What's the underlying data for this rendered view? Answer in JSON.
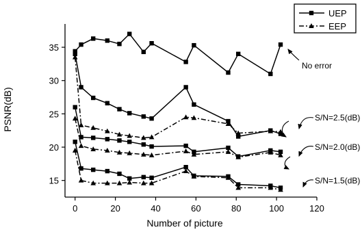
{
  "chart_data": {
    "type": "line",
    "title": "",
    "xlabel": "Number of picture",
    "ylabel": "PSNR(dB)",
    "xlim": [
      -5,
      120
    ],
    "ylim": [
      12.5,
      38.5
    ],
    "xticks": [
      0,
      20,
      40,
      60,
      80,
      100,
      120
    ],
    "yticks": [
      15,
      20,
      25,
      30,
      35
    ],
    "grid": false,
    "legend_position": "top-right",
    "legend": [
      {
        "label": "UEP",
        "marker": "square",
        "dash": "solid"
      },
      {
        "label": "EEP",
        "marker": "triangle",
        "dash": "dash-dot"
      }
    ],
    "annotations": [
      {
        "text": "No error",
        "x": 99,
        "y": 31.2
      },
      {
        "text": "S/N=2.5(dB)",
        "x": 99,
        "y": 22.4
      },
      {
        "text": "S/N=2.0(dB)",
        "x": 101,
        "y": 19.3
      },
      {
        "text": "S/N=1.5(dB)",
        "x": 101,
        "y": 14.1
      }
    ],
    "series": [
      {
        "name": "",
        "marker": "square",
        "dash": "solid",
        "x": [
          0,
          3,
          9,
          16,
          22,
          27,
          34,
          38,
          55,
          59,
          76,
          81,
          97,
          102
        ],
        "y": [
          34.4,
          35.4,
          36.3,
          36.0,
          35.5,
          37.0,
          34.3,
          35.6,
          32.8,
          35.3,
          31.2,
          34.0,
          31.0,
          35.4
        ]
      },
      {
        "name": "",
        "marker": "square",
        "dash": "solid",
        "x": [
          0,
          3,
          9,
          16,
          22,
          27,
          34,
          38,
          55,
          59,
          76,
          81,
          97,
          102
        ],
        "y": [
          34.0,
          29.0,
          27.4,
          26.6,
          25.7,
          25.1,
          24.6,
          24.3,
          29.0,
          26.4,
          23.9,
          21.6,
          22.5,
          22.0
        ]
      },
      {
        "name": "",
        "marker": "triangle",
        "dash": "dash-dot",
        "x": [
          0,
          3,
          9,
          16,
          22,
          27,
          34,
          38,
          55,
          59,
          76,
          81,
          97,
          102
        ],
        "y": [
          33.5,
          23.3,
          22.9,
          22.4,
          21.9,
          21.7,
          21.4,
          21.5,
          24.5,
          24.4,
          23.5,
          22.1,
          22.4,
          22.3
        ]
      },
      {
        "name": "",
        "marker": "square",
        "dash": "solid",
        "x": [
          0,
          3,
          9,
          16,
          22,
          27,
          34,
          38,
          55,
          59,
          76,
          81,
          97,
          102
        ],
        "y": [
          26.0,
          21.5,
          21.4,
          21.2,
          21.0,
          20.8,
          20.4,
          20.1,
          20.2,
          19.3,
          19.9,
          18.6,
          19.5,
          19.3
        ]
      },
      {
        "name": "",
        "marker": "triangle",
        "dash": "dash-dot",
        "x": [
          0,
          3,
          9,
          16,
          22,
          27,
          34,
          38,
          55,
          59,
          76,
          81,
          97,
          102
        ],
        "y": [
          24.3,
          20.2,
          19.7,
          19.5,
          19.2,
          19.1,
          18.9,
          18.8,
          19.4,
          18.9,
          19.3,
          18.5,
          19.2,
          18.8
        ]
      },
      {
        "name": "",
        "marker": "square",
        "dash": "solid",
        "x": [
          0,
          3,
          9,
          16,
          22,
          27,
          34,
          38,
          55,
          59,
          76,
          81,
          97,
          102
        ],
        "y": [
          20.8,
          16.8,
          16.6,
          16.4,
          16.0,
          15.3,
          15.5,
          15.4,
          17.0,
          15.7,
          15.6,
          14.4,
          14.2,
          13.9
        ]
      },
      {
        "name": "",
        "marker": "triangle",
        "dash": "dash-dot",
        "x": [
          0,
          3,
          9,
          16,
          22,
          27,
          34,
          38,
          55,
          59,
          76,
          81,
          97,
          102
        ],
        "y": [
          19.5,
          15.0,
          14.6,
          14.6,
          14.6,
          14.7,
          14.6,
          14.6,
          16.4,
          15.6,
          15.4,
          13.9,
          13.9,
          13.6
        ]
      }
    ]
  }
}
